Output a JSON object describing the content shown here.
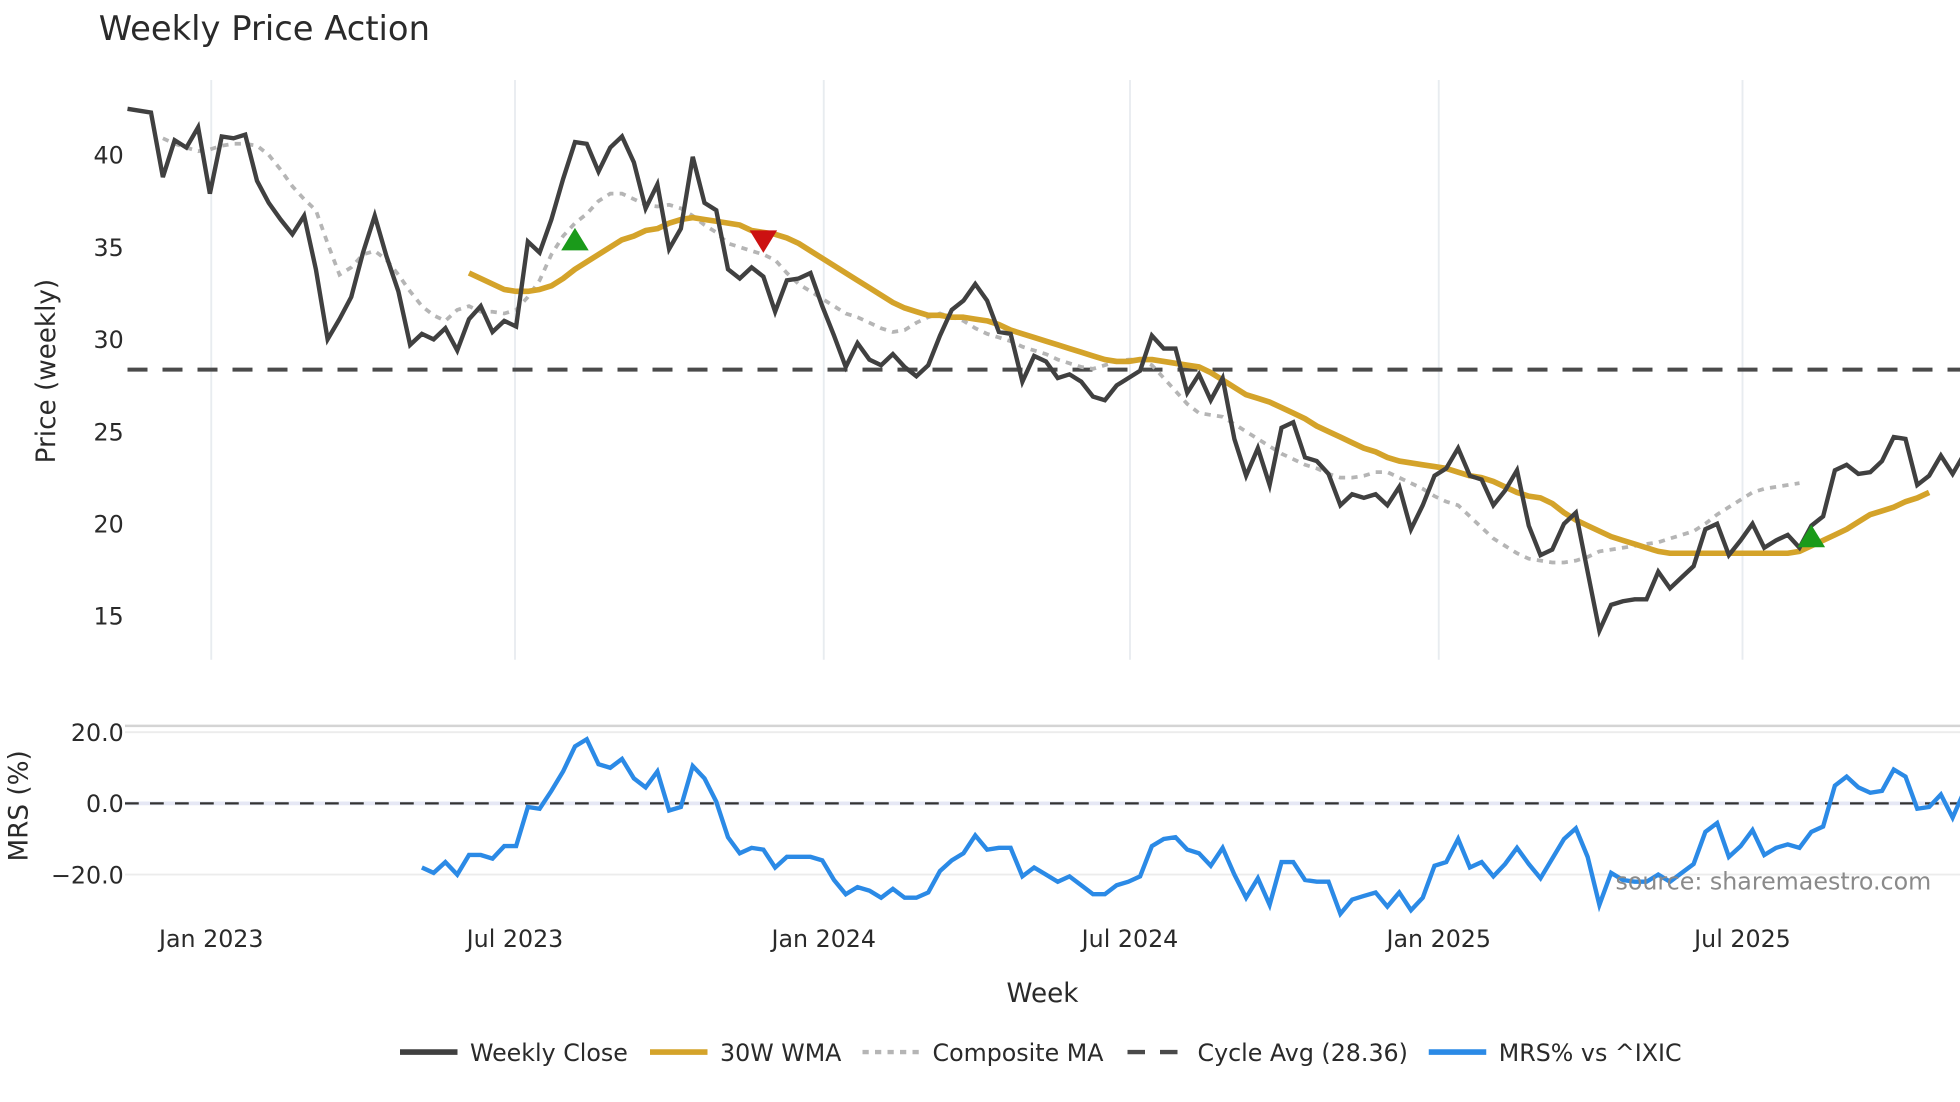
{
  "title": "Weekly Price Action",
  "watermark": "source: sharemaestro.com",
  "colors": {
    "close": "#404040",
    "wma": "#d4a32a",
    "composite": "#b5b5b5",
    "cycle": "#4a4a4a",
    "mrs": "#2b8ae6",
    "buy": "#1a9a1a",
    "sell": "#cc1111",
    "grid": "#e8ecf0"
  },
  "legend": [
    {
      "label": "Weekly Close",
      "key": "close",
      "style": "solid"
    },
    {
      "label": "30W WMA",
      "key": "wma",
      "style": "solid"
    },
    {
      "label": "Composite MA",
      "key": "composite",
      "style": "dot"
    },
    {
      "label": "Cycle Avg (28.36)",
      "key": "cycle",
      "style": "dash"
    },
    {
      "label": "MRS% vs ^IXIC",
      "key": "mrs",
      "style": "solid"
    }
  ],
  "chart_data": [
    {
      "type": "line",
      "title": "Weekly Price Action",
      "xlabel": "Week",
      "ylabel": "Price (weekly)",
      "ylim": [
        12.5,
        43.5
      ],
      "yticks": [
        15,
        20,
        25,
        30,
        35,
        40
      ],
      "xticks": [
        "Jan 2023",
        "Jul 2023",
        "Jan 2024",
        "Jul 2024",
        "Jan 2025",
        "Jul 2025"
      ],
      "grid": true,
      "legend_position": "bottom",
      "x_start_week": "2022-11-14",
      "x_end_week": "2025-11-17",
      "cycle_avg": 28.36,
      "series": [
        {
          "name": "Weekly Close",
          "start_index": 0,
          "values": [
            42.5,
            42.4,
            42.3,
            38.8,
            40.8,
            40.4,
            41.5,
            37.9,
            41.0,
            40.9,
            41.1,
            38.6,
            37.4,
            36.5,
            35.7,
            36.7,
            33.8,
            30.0,
            31.1,
            32.3,
            34.7,
            36.7,
            34.5,
            32.6,
            29.7,
            30.3,
            30.0,
            30.6,
            29.4,
            31.1,
            31.8,
            30.4,
            31.0,
            30.7,
            35.3,
            34.7,
            36.5,
            38.7,
            40.7,
            40.6,
            39.1,
            40.4,
            41.0,
            39.6,
            37.1,
            38.4,
            34.9,
            36.0,
            39.9,
            37.4,
            37.0,
            33.8,
            33.3,
            33.9,
            33.4,
            31.5,
            33.2,
            33.3,
            33.6,
            31.8,
            30.2,
            28.5,
            29.8,
            28.9,
            28.6,
            29.2,
            28.5,
            28.0,
            28.6,
            30.2,
            31.6,
            32.1,
            33.0,
            32.1,
            30.4,
            30.3,
            27.7,
            29.1,
            28.8,
            27.9,
            28.1,
            27.7,
            26.9,
            26.7,
            27.5,
            27.9,
            28.3,
            30.2,
            29.5,
            29.5,
            27.1,
            28.1,
            26.7,
            27.9,
            24.6,
            22.6,
            24.1,
            22.1,
            25.2,
            25.5,
            23.6,
            23.4,
            22.7,
            21.0,
            21.6,
            21.4,
            21.6,
            21.0,
            22.0,
            19.7,
            21.0,
            22.6,
            23.0,
            24.1,
            22.6,
            22.4,
            21.0,
            21.8,
            22.9,
            19.9,
            18.3,
            18.6,
            20.0,
            20.6,
            17.4,
            14.2,
            15.6,
            15.8,
            15.9,
            15.9,
            17.4,
            16.5,
            17.1,
            17.7,
            19.7,
            20.0,
            18.3,
            19.1,
            20.0,
            18.7,
            19.1,
            19.4,
            18.7,
            19.9,
            20.4,
            22.9,
            23.2,
            22.7,
            22.8,
            23.4,
            24.7,
            24.6,
            22.1,
            22.6,
            23.7,
            22.7,
            23.8
          ]
        },
        {
          "name": "30W WMA",
          "start_index": 29,
          "values": [
            33.6,
            33.3,
            33.0,
            32.7,
            32.6,
            32.6,
            32.7,
            32.9,
            33.3,
            33.8,
            34.2,
            34.6,
            35.0,
            35.4,
            35.6,
            35.9,
            36.0,
            36.3,
            36.5,
            36.6,
            36.5,
            36.4,
            36.3,
            36.2,
            35.9,
            35.8,
            35.7,
            35.5,
            35.2,
            34.8,
            34.4,
            34.0,
            33.6,
            33.2,
            32.8,
            32.4,
            32.0,
            31.7,
            31.5,
            31.3,
            31.3,
            31.2,
            31.2,
            31.1,
            31.0,
            30.8,
            30.5,
            30.3,
            30.1,
            29.9,
            29.7,
            29.5,
            29.3,
            29.1,
            28.9,
            28.8,
            28.8,
            28.9,
            28.9,
            28.8,
            28.7,
            28.6,
            28.5,
            28.2,
            27.8,
            27.4,
            27.0,
            26.8,
            26.6,
            26.3,
            26.0,
            25.7,
            25.3,
            25.0,
            24.7,
            24.4,
            24.1,
            23.9,
            23.6,
            23.4,
            23.3,
            23.2,
            23.1,
            23.0,
            22.8,
            22.6,
            22.5,
            22.3,
            22.0,
            21.7,
            21.5,
            21.4,
            21.1,
            20.6,
            20.2,
            19.9,
            19.6,
            19.3,
            19.1,
            18.9,
            18.7,
            18.5,
            18.4,
            18.4,
            18.4,
            18.4,
            18.4,
            18.4,
            18.4,
            18.4,
            18.4,
            18.4,
            18.4,
            18.5,
            18.8,
            19.1,
            19.4,
            19.7,
            20.1,
            20.5,
            20.7,
            20.9,
            21.2,
            21.4,
            21.7
          ]
        },
        {
          "name": "Composite MA",
          "start_index": 3,
          "values": [
            40.9,
            40.6,
            40.4,
            40.2,
            40.3,
            40.5,
            40.6,
            40.6,
            40.5,
            40.0,
            39.2,
            38.3,
            37.6,
            37.0,
            35.2,
            33.5,
            33.9,
            34.6,
            34.8,
            34.3,
            33.5,
            32.6,
            31.8,
            31.3,
            31.0,
            31.6,
            31.8,
            31.5,
            31.5,
            31.4,
            31.6,
            32.3,
            33.2,
            34.6,
            35.6,
            36.3,
            36.8,
            37.5,
            37.9,
            37.9,
            37.6,
            37.3,
            37.2,
            37.3,
            37.1,
            36.7,
            36.2,
            35.8,
            35.2,
            35.0,
            34.8,
            34.6,
            34.3,
            33.6,
            33.0,
            32.6,
            32.2,
            31.8,
            31.4,
            31.2,
            30.9,
            30.6,
            30.4,
            30.5,
            30.9,
            31.2,
            31.4,
            31.2,
            31.0,
            30.6,
            30.3,
            30.1,
            29.9,
            29.6,
            29.4,
            29.2,
            28.9,
            28.7,
            28.5,
            28.4,
            28.6,
            28.8,
            28.9,
            28.9,
            28.6,
            27.9,
            27.2,
            26.5,
            26.0,
            25.9,
            25.8,
            25.4,
            25.0,
            24.6,
            24.2,
            23.8,
            23.5,
            23.2,
            23.0,
            22.7,
            22.5,
            22.5,
            22.6,
            22.8,
            22.8,
            22.5,
            22.2,
            21.9,
            21.5,
            21.2,
            21.0,
            20.4,
            19.8,
            19.2,
            18.8,
            18.4,
            18.1,
            18.0,
            17.9,
            17.9,
            18.0,
            18.2,
            18.5,
            18.6,
            18.7,
            18.8,
            18.9,
            19.0,
            19.2,
            19.4,
            19.6,
            20.0,
            20.5,
            20.9,
            21.3,
            21.7,
            21.9,
            22.0,
            22.1,
            22.2
          ]
        },
        {
          "name": "Cycle Avg (28.36)",
          "type": "hline",
          "value": 28.36
        }
      ],
      "markers": [
        {
          "type": "buy",
          "shape": "triangle-up",
          "index": 38,
          "value": 35.3
        },
        {
          "type": "sell",
          "shape": "triangle-down",
          "index": 54,
          "value": 35.3
        },
        {
          "type": "buy",
          "shape": "triangle-up",
          "index": 143,
          "value": 19.2
        }
      ]
    },
    {
      "type": "line",
      "title": "",
      "xlabel": "Week",
      "ylabel": "MRS (%)",
      "ylim": [
        -32,
        23
      ],
      "yticks": [
        -20.0,
        0.0,
        20.0
      ],
      "reference_line": 0,
      "series": [
        {
          "name": "MRS% vs ^IXIC",
          "start_index": 25,
          "values": [
            -18,
            -19.5,
            -16.5,
            -20,
            -14.5,
            -14.5,
            -15.5,
            -12,
            -12,
            -1,
            -1.5,
            3.5,
            9,
            16,
            18,
            11,
            10,
            12.5,
            7,
            4.5,
            9,
            -2,
            -1,
            10.5,
            7,
            0.5,
            -9.5,
            -14,
            -12.5,
            -13,
            -18,
            -15,
            -15,
            -15,
            -16,
            -21.5,
            -25.5,
            -23.5,
            -24.5,
            -26.5,
            -24,
            -26.5,
            -26.5,
            -25,
            -19,
            -16,
            -14,
            -9,
            -13,
            -12.5,
            -12.5,
            -20.5,
            -18,
            -20,
            -22,
            -20.5,
            -23,
            -25.5,
            -25.5,
            -23,
            -22,
            -20.5,
            -12,
            -10,
            -9.5,
            -13,
            -14,
            -17.5,
            -12.5,
            -20,
            -26.5,
            -21,
            -28.5,
            -16.5,
            -16.5,
            -21.5,
            -22,
            -22,
            -31,
            -27,
            -26,
            -25,
            -29,
            -25,
            -30,
            -26.5,
            -17.5,
            -16.5,
            -10,
            -18,
            -16.5,
            -20.5,
            -17,
            -12.5,
            -17,
            -21,
            -15.5,
            -10,
            -7,
            -15,
            -28.5,
            -19.5,
            -21.5,
            -22,
            -22,
            -20,
            -22,
            -19.5,
            -17,
            -8,
            -5.5,
            -15,
            -12,
            -7.5,
            -14.5,
            -12.5,
            -11.5,
            -12.5,
            -8,
            -6.5,
            5,
            7.5,
            4.5,
            3,
            3.5,
            9.5,
            7.5,
            -1.5,
            -1,
            2.5,
            -4,
            3.5
          ]
        }
      ]
    }
  ]
}
